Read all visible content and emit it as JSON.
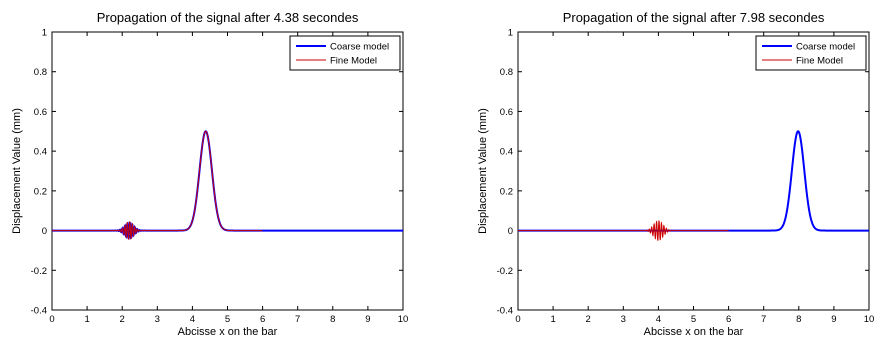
{
  "chart_data": [
    {
      "type": "line",
      "title": "Propagation of the signal after 4.38 secondes",
      "xlabel": "Abcisse x on the bar",
      "ylabel": "Displacement Value (mm)",
      "xlim": [
        0,
        10
      ],
      "ylim": [
        -0.4,
        1
      ],
      "xticks": [
        "0",
        "1",
        "2",
        "3",
        "4",
        "5",
        "6",
        "7",
        "8",
        "9",
        "10"
      ],
      "yticks": [
        "-0.4",
        "-0.2",
        "0",
        "0.2",
        "0.4",
        "0.6",
        "0.8",
        "1"
      ],
      "grid": false,
      "legend_position": "top-right",
      "series": [
        {
          "name": "Coarse model",
          "color": "#0000ff",
          "x_range": [
            0,
            10
          ],
          "pulse": {
            "center": 4.38,
            "amplitude": 0.5,
            "width": 0.25
          },
          "dispersion": {
            "center": 2.2,
            "amplitude": 0.04,
            "width": 0.18,
            "wavelength": 0.07
          },
          "visible_from": 6.0
        },
        {
          "name": "Fine Model",
          "color": "#cc0000",
          "x_range": [
            0,
            6
          ],
          "pulse": {
            "center": 4.38,
            "amplitude": 0.5,
            "width": 0.25
          },
          "dispersion": {
            "center": 2.2,
            "amplitude": 0.045,
            "width": 0.17,
            "wavelength": 0.07
          }
        }
      ]
    },
    {
      "type": "line",
      "title": "Propagation of the signal after 7.98 secondes",
      "xlabel": "Abcisse x on the bar",
      "ylabel": "Displacement Value (mm)",
      "xlim": [
        0,
        10
      ],
      "ylim": [
        -0.4,
        1
      ],
      "xticks": [
        "0",
        "1",
        "2",
        "3",
        "4",
        "5",
        "6",
        "7",
        "8",
        "9",
        "10"
      ],
      "yticks": [
        "-0.4",
        "-0.2",
        "0",
        "0.2",
        "0.4",
        "0.6",
        "0.8",
        "1"
      ],
      "grid": false,
      "legend_position": "top-right",
      "series": [
        {
          "name": "Coarse model",
          "color": "#0000ff",
          "x_range": [
            0,
            10
          ],
          "pulse": {
            "center": 7.98,
            "amplitude": 0.5,
            "width": 0.25
          },
          "dispersion": {
            "center": 4.0,
            "amplitude": 0.0,
            "width": 0.2,
            "wavelength": 0.07
          },
          "visible_from": 6.0
        },
        {
          "name": "Fine Model",
          "color": "#cc0000",
          "x_range": [
            0,
            6
          ],
          "pulse": {
            "center": 7.98,
            "amplitude": 0.0,
            "width": 0.25
          },
          "dispersion": {
            "center": 4.0,
            "amplitude": 0.05,
            "width": 0.19,
            "wavelength": 0.07
          }
        }
      ]
    }
  ]
}
